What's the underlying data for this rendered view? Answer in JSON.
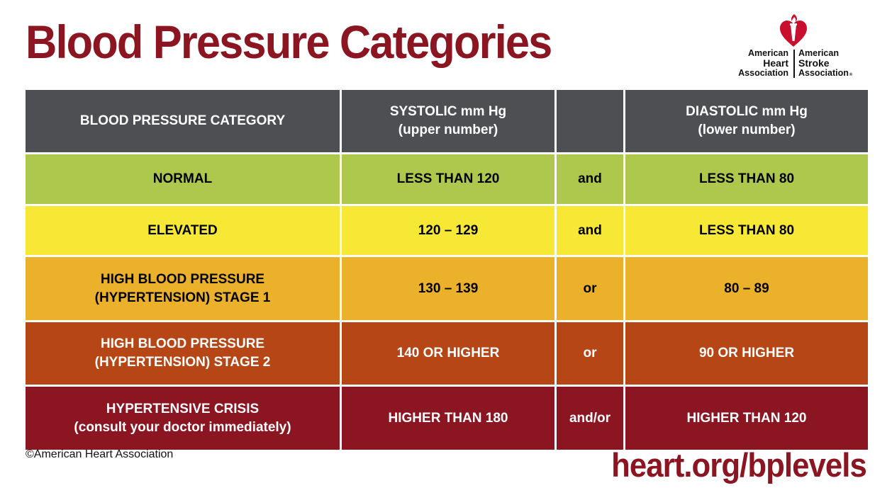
{
  "title": "Blood Pressure Categories",
  "brand_color": "#8b1520",
  "logo": {
    "left_lines": [
      "American",
      "Heart",
      "Association"
    ],
    "right_lines": [
      "American",
      "Stroke",
      "Association"
    ],
    "registered_mark": "®",
    "heart_color": "#c8102e",
    "icon": "heart-torch-icon"
  },
  "table": {
    "header": {
      "bg": "#4d4f53",
      "fg": "#ffffff",
      "cells": [
        "BLOOD PRESSURE CATEGORY",
        "SYSTOLIC mm Hg\n(upper number)",
        "",
        "DIASTOLIC mm Hg\n(lower number)"
      ]
    },
    "rows": [
      {
        "bg": "#adc84c",
        "fg": "#000000",
        "category": "NORMAL",
        "systolic": "LESS THAN 120",
        "connector": "and",
        "diastolic": "LESS THAN 80"
      },
      {
        "bg": "#f7e835",
        "fg": "#000000",
        "category": "ELEVATED",
        "systolic": "120 – 129",
        "connector": "and",
        "diastolic": "LESS THAN 80"
      },
      {
        "bg": "#ecb12a",
        "fg": "#000000",
        "category": "HIGH BLOOD PRESSURE\n(HYPERTENSION) STAGE 1",
        "systolic": "130 – 139",
        "connector": "or",
        "diastolic": "80 – 89"
      },
      {
        "bg": "#b64615",
        "fg": "#ffffff",
        "category": "HIGH BLOOD PRESSURE\n(HYPERTENSION) STAGE 2",
        "systolic": "140 OR HIGHER",
        "connector": "or",
        "diastolic": "90 OR HIGHER"
      },
      {
        "bg": "#8b1520",
        "fg": "#ffffff",
        "category": "HYPERTENSIVE CRISIS\n(consult your doctor immediately)",
        "systolic": "HIGHER THAN 180",
        "connector": "and/or",
        "diastolic": "HIGHER THAN 120"
      }
    ]
  },
  "footer": {
    "copyright": "©American Heart Association",
    "url": "heart.org/bplevels"
  }
}
